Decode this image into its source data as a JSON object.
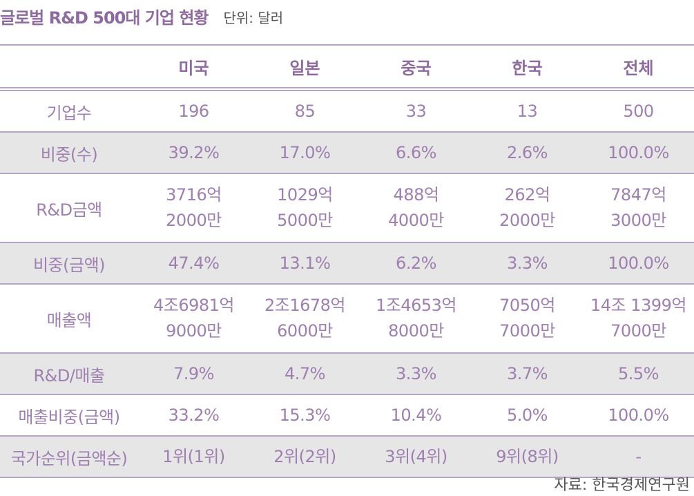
{
  "title": "글로벌 R&D 500대 기업 현황",
  "unit": "단위: 달러",
  "source": "자료: 한국경제연구원",
  "chart_data": {
    "type": "table",
    "columns": [
      "미국",
      "일본",
      "중국",
      "한국",
      "전체"
    ],
    "rows": [
      {
        "label": "기업수",
        "values": [
          [
            "196"
          ],
          [
            "85"
          ],
          [
            "33"
          ],
          [
            "13"
          ],
          [
            "500"
          ]
        ]
      },
      {
        "label": "비중(수)",
        "values": [
          [
            "39.2%"
          ],
          [
            "17.0%"
          ],
          [
            "6.6%"
          ],
          [
            "2.6%"
          ],
          [
            "100.0%"
          ]
        ]
      },
      {
        "label": "R&D금액",
        "values": [
          [
            "3716억",
            "2000만"
          ],
          [
            "1029억",
            "5000만"
          ],
          [
            "488억",
            "4000만"
          ],
          [
            "262억",
            "2000만"
          ],
          [
            "7847억",
            "3000만"
          ]
        ]
      },
      {
        "label": "비중(금액)",
        "values": [
          [
            "47.4%"
          ],
          [
            "13.1%"
          ],
          [
            "6.2%"
          ],
          [
            "3.3%"
          ],
          [
            "100.0%"
          ]
        ]
      },
      {
        "label": "매출액",
        "values": [
          [
            "4조6981억",
            "9000만"
          ],
          [
            "2조1678억",
            "6000만"
          ],
          [
            "1조4653억",
            "8000만"
          ],
          [
            "7050억",
            "7000만"
          ],
          [
            "14조 1399억",
            "7000만"
          ]
        ]
      },
      {
        "label": "R&D/매출",
        "values": [
          [
            "7.9%"
          ],
          [
            "4.7%"
          ],
          [
            "3.3%"
          ],
          [
            "3.7%"
          ],
          [
            "5.5%"
          ]
        ]
      },
      {
        "label": "매출비중(금액)",
        "values": [
          [
            "33.2%"
          ],
          [
            "15.3%"
          ],
          [
            "10.4%"
          ],
          [
            "5.0%"
          ],
          [
            "100.0%"
          ]
        ]
      },
      {
        "label": "국가순위(금액순)",
        "values": [
          [
            "1위(1위)"
          ],
          [
            "2위(2위)"
          ],
          [
            "3위(4위)"
          ],
          [
            "9위(8위)"
          ],
          [
            "-"
          ]
        ]
      }
    ]
  },
  "colors": {
    "accent": "#8f6a9f",
    "cell_text": "#9e7fb0",
    "rule": "#b7a3c4",
    "shade": "#e6e6e6"
  }
}
